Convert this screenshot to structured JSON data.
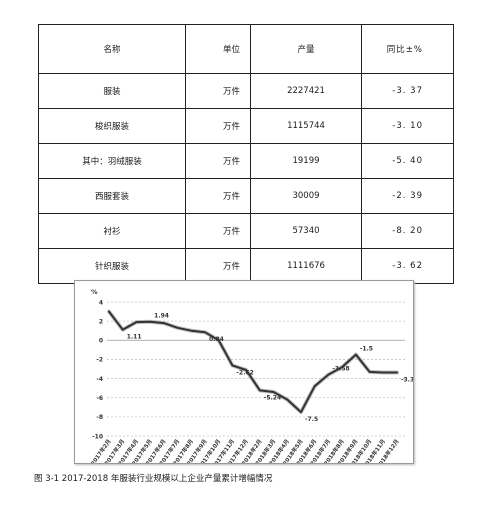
{
  "table": {
    "headers": [
      "名称",
      "单位",
      "产量",
      "同比±%"
    ],
    "rows": [
      [
        "服装",
        "万件",
        "2227421",
        "-3. 37"
      ],
      [
        "梭织服装",
        "万件",
        "1115744",
        "-3. 10"
      ],
      [
        "其中：羽绒服装",
        "万件",
        "19199",
        "-5. 40"
      ],
      [
        "西服套装",
        "万件",
        "30009",
        "-2. 39"
      ],
      [
        "衬衫",
        "万件",
        "57340",
        "-8. 20"
      ],
      [
        "针织服装",
        "万件",
        "1111676",
        "-3. 62"
      ]
    ]
  },
  "chart_data": {
    "type": "line",
    "ylabel": "%",
    "ylim": [
      -10,
      4
    ],
    "yticks": [
      "4",
      "2",
      "0",
      "-2",
      "-4",
      "-6",
      "-8",
      "-10"
    ],
    "grid": true,
    "categories": [
      "2017年2月",
      "2017年3月",
      "2017年4月",
      "2017年5月",
      "2017年6月",
      "2017年7月",
      "2017年8月",
      "2017年9月",
      "2017年10月",
      "2017年11月",
      "2017年12月",
      "2018年2月",
      "2018年3月",
      "2018年4月",
      "2018年5月",
      "2018年6月",
      "2018年7月",
      "2018年8月",
      "2018年9月",
      "2018年10月",
      "2018年11月",
      "2018年12月"
    ],
    "values": [
      3.0,
      1.11,
      1.9,
      1.94,
      1.8,
      1.3,
      1.0,
      0.84,
      0.0,
      -2.62,
      -3.1,
      -5.24,
      -5.4,
      -6.2,
      -7.5,
      -4.8,
      -3.58,
      -2.8,
      -1.5,
      -3.3,
      -3.37,
      -3.37
    ],
    "data_labels": [
      {
        "index": 1,
        "text": "1.11"
      },
      {
        "index": 3,
        "text": "1.94"
      },
      {
        "index": 7,
        "text": "0.84"
      },
      {
        "index": 9,
        "text": "-2.62"
      },
      {
        "index": 11,
        "text": "-5.24"
      },
      {
        "index": 14,
        "text": "-7.5"
      },
      {
        "index": 16,
        "text": "-3.58"
      },
      {
        "index": 18,
        "text": "-1.5"
      },
      {
        "index": 21,
        "text": "-3.37"
      }
    ],
    "line_color": "#333333"
  },
  "caption": "图 3-1  2017-2018 年服装行业规模以上企业产量累计增幅情况"
}
